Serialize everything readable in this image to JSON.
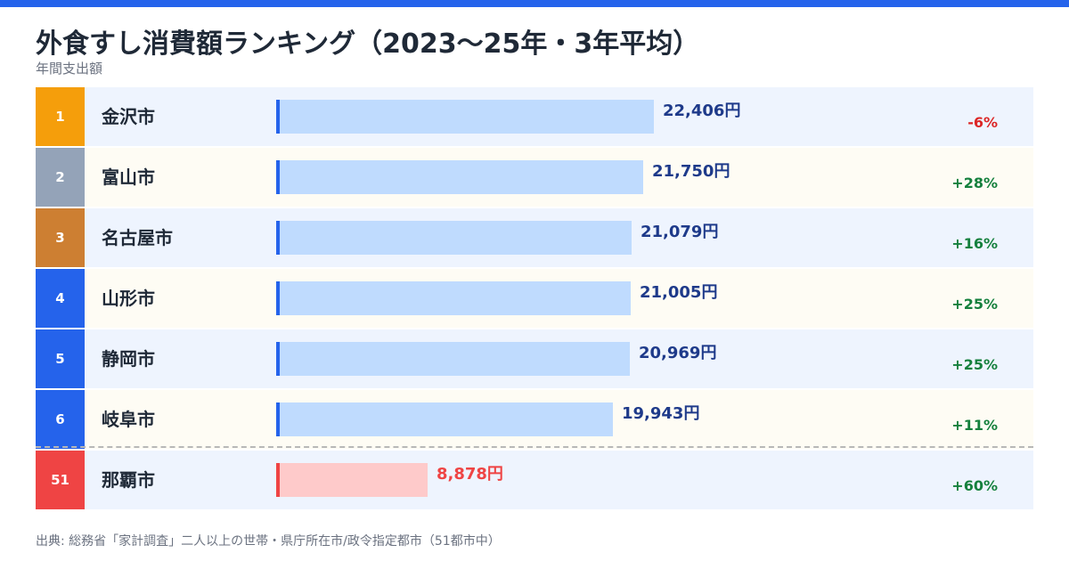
{
  "header": {
    "title": "外食すし消費額ランキング（2023〜25年・3年平均）",
    "subtitle": "年間支出額"
  },
  "colors": {
    "accent": "#2563eb",
    "rank_gold": "#f59e0b",
    "rank_silver": "#94a3b8",
    "rank_bronze": "#cd7f32",
    "rank_default": "#2563eb",
    "rank_highlight": "#ef4444",
    "bar": "#bfdbfe",
    "bar_marker": "#2563eb",
    "bar_highlight": "#fecaca",
    "bar_marker_highlight": "#ef4444",
    "value_text": "#1e3a8a",
    "value_text_highlight": "#ef4444",
    "positive": "#15803d",
    "negative": "#dc2626",
    "row_bg_a": "#eef4fe",
    "row_bg_b": "#fefcf4"
  },
  "chart_data": {
    "type": "bar",
    "orientation": "horizontal",
    "title": "外食すし消費額ランキング（2023〜25年・3年平均）",
    "ylabel": "年間支出額",
    "xlim": [
      0,
      30000
    ],
    "rows": [
      {
        "rank": "1",
        "city": "金沢市",
        "value": 22406,
        "value_label": "22,406円",
        "change": "-6%",
        "change_dir": "down",
        "rank_color": "gold",
        "highlight": false
      },
      {
        "rank": "2",
        "city": "富山市",
        "value": 21750,
        "value_label": "21,750円",
        "change": "+28%",
        "change_dir": "up",
        "rank_color": "silver",
        "highlight": false
      },
      {
        "rank": "3",
        "city": "名古屋市",
        "value": 21079,
        "value_label": "21,079円",
        "change": "+16%",
        "change_dir": "up",
        "rank_color": "bronze",
        "highlight": false
      },
      {
        "rank": "4",
        "city": "山形市",
        "value": 21005,
        "value_label": "21,005円",
        "change": "+25%",
        "change_dir": "up",
        "rank_color": "default",
        "highlight": false
      },
      {
        "rank": "5",
        "city": "静岡市",
        "value": 20969,
        "value_label": "20,969円",
        "change": "+25%",
        "change_dir": "up",
        "rank_color": "default",
        "highlight": false
      },
      {
        "rank": "6",
        "city": "岐阜市",
        "value": 19943,
        "value_label": "19,943円",
        "change": "+11%",
        "change_dir": "up",
        "rank_color": "default",
        "highlight": false
      },
      {
        "rank": "51",
        "city": "那覇市",
        "value": 8878,
        "value_label": "8,878円",
        "change": "+60%",
        "change_dir": "up",
        "rank_color": "highlight",
        "highlight": true
      }
    ]
  },
  "footer": {
    "source": "出典: 総務省「家計調査」二人以上の世帯・県庁所在市/政令指定都市（51都市中）"
  }
}
